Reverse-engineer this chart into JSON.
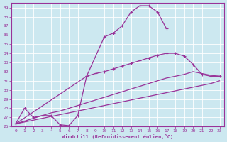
{
  "bg_color": "#cce8f0",
  "line_color": "#993399",
  "grid_color": "#ffffff",
  "xlabel": "Windchill (Refroidissement éolien,°C)",
  "ylim": [
    26,
    39.5
  ],
  "xlim": [
    -0.5,
    23.5
  ],
  "ytick_vals": [
    26,
    27,
    28,
    29,
    30,
    31,
    32,
    33,
    34,
    35,
    36,
    37,
    38,
    39
  ],
  "xtick_vals": [
    0,
    1,
    2,
    3,
    4,
    5,
    6,
    7,
    8,
    9,
    10,
    11,
    12,
    13,
    14,
    15,
    16,
    17,
    18,
    19,
    20,
    21,
    22,
    23
  ],
  "curve1_x": [
    0,
    1,
    2,
    3,
    4,
    5,
    6,
    7,
    8,
    10,
    11,
    12,
    13,
    14,
    15,
    16,
    17
  ],
  "curve1_y": [
    26.3,
    28.0,
    27.0,
    27.2,
    27.2,
    26.2,
    26.1,
    27.2,
    31.5,
    35.8,
    36.2,
    37.0,
    38.5,
    39.2,
    39.2,
    38.5,
    36.7
  ],
  "curve2_x": [
    0,
    8,
    9,
    10,
    11,
    12,
    13,
    14,
    15,
    16,
    17,
    18,
    19,
    20,
    21,
    22,
    23
  ],
  "curve2_y": [
    26.3,
    31.5,
    31.8,
    32.0,
    32.3,
    32.6,
    32.9,
    33.2,
    33.5,
    33.8,
    34.0,
    34.0,
    33.7,
    32.8,
    31.7,
    31.5,
    31.5
  ],
  "curve3_x": [
    0,
    1,
    2,
    3,
    4,
    5,
    6,
    7,
    8,
    9,
    10,
    11,
    12,
    13,
    14,
    15,
    16,
    17,
    18,
    19,
    20,
    21,
    22,
    23
  ],
  "curve3_y": [
    26.3,
    26.6,
    26.9,
    27.2,
    27.5,
    27.7,
    28.0,
    28.3,
    28.6,
    28.9,
    29.2,
    29.5,
    29.8,
    30.1,
    30.4,
    30.7,
    31.0,
    31.3,
    31.5,
    31.7,
    32.0,
    31.8,
    31.6,
    31.5
  ],
  "curve4_x": [
    0,
    1,
    2,
    3,
    4,
    5,
    6,
    7,
    8,
    9,
    10,
    11,
    12,
    13,
    14,
    15,
    16,
    17,
    18,
    19,
    20,
    21,
    22,
    23
  ],
  "curve4_y": [
    26.3,
    26.5,
    26.7,
    26.9,
    27.1,
    27.3,
    27.5,
    27.7,
    27.9,
    28.1,
    28.3,
    28.5,
    28.7,
    28.9,
    29.1,
    29.3,
    29.5,
    29.7,
    29.9,
    30.1,
    30.3,
    30.5,
    30.7,
    31.0
  ]
}
